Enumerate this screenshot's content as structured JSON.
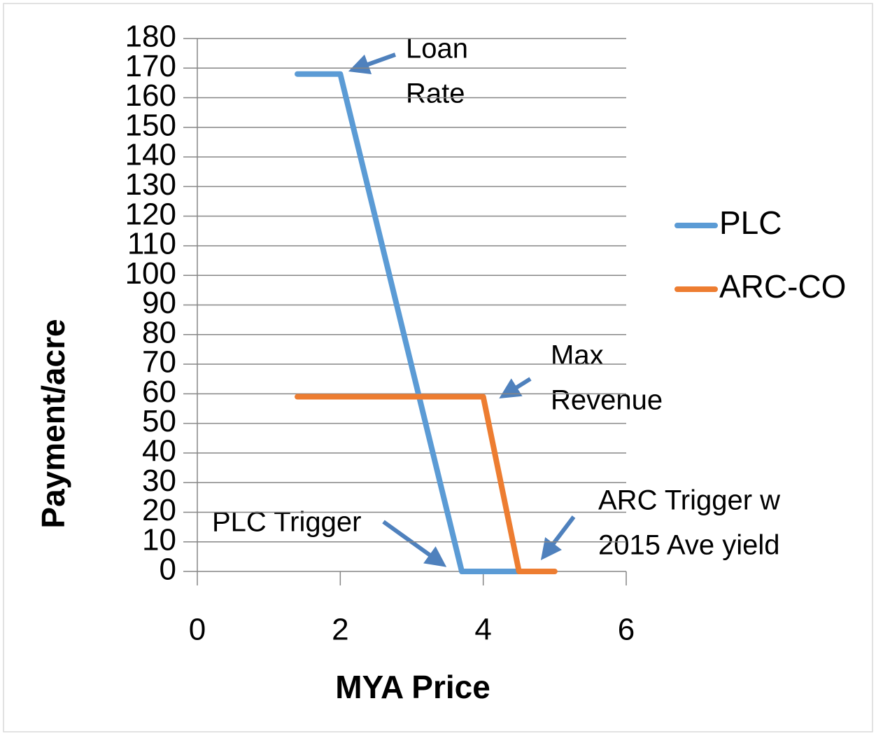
{
  "chart_data": {
    "type": "line",
    "xlabel": "MYA Price",
    "ylabel": "Payment/acre",
    "xlim": [
      0,
      6
    ],
    "xticks": [
      0,
      2,
      4,
      6
    ],
    "ylim": [
      0,
      180
    ],
    "yticks": [
      0,
      10,
      20,
      30,
      40,
      50,
      60,
      70,
      80,
      90,
      100,
      110,
      120,
      130,
      140,
      150,
      160,
      170,
      180
    ],
    "grid": true,
    "legend": "right",
    "series": [
      {
        "name": "PLC",
        "color": "#5b9bd5",
        "x": [
          1.4,
          2,
          3.7,
          4.5
        ],
        "values": [
          168,
          168,
          0,
          0
        ]
      },
      {
        "name": "ARC-CO",
        "color": "#ed7d31",
        "x": [
          1.4,
          4,
          4.5,
          5
        ],
        "values": [
          59,
          59,
          0,
          0
        ]
      }
    ],
    "annotations": [
      {
        "lines": [
          "Loan",
          "Rate"
        ]
      },
      {
        "lines": [
          "Max",
          "Revenue"
        ]
      },
      {
        "lines": [
          "PLC Trigger"
        ]
      },
      {
        "lines": [
          "ARC Trigger w",
          "2015 Ave yield"
        ]
      }
    ]
  }
}
